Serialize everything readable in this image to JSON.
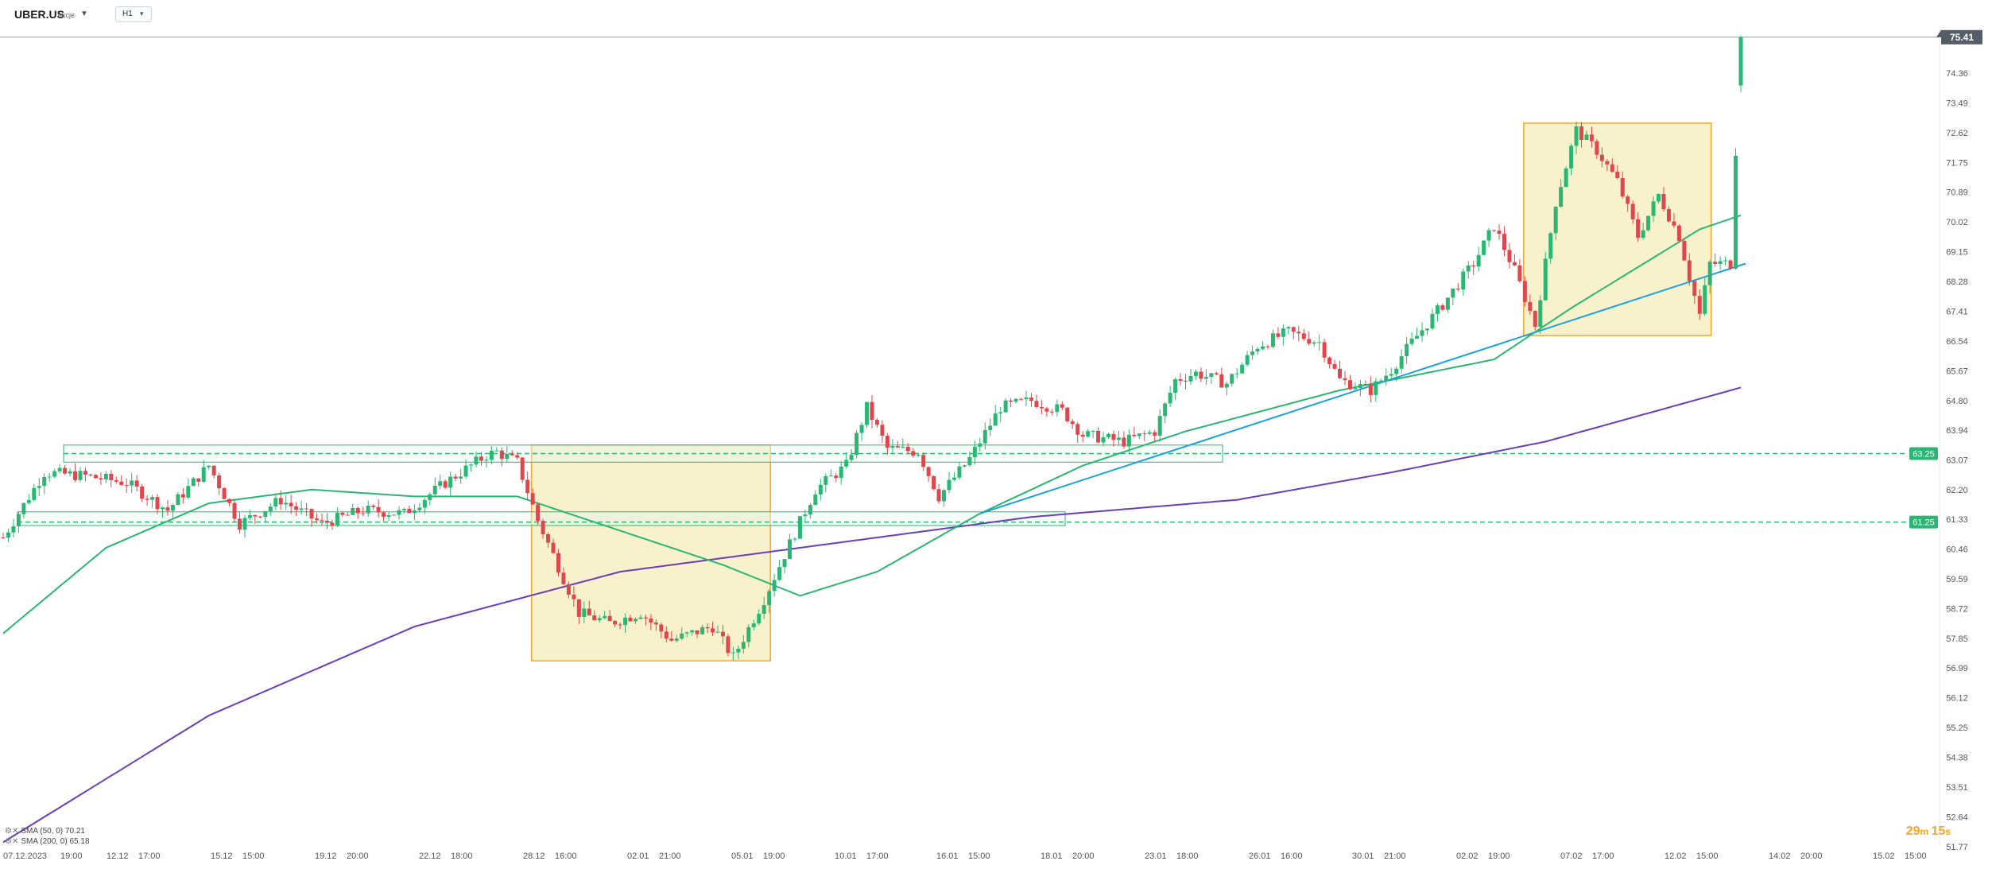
{
  "header": {
    "symbol": "UBER.US",
    "symbol_sub": "Akcje",
    "timeframe": "H1"
  },
  "legend": [
    {
      "label": "SMA (50, 0) 70.21",
      "color": "#2bb673"
    },
    {
      "label": "SMA (200, 0) 65.18",
      "color": "#6a3fb5"
    }
  ],
  "timer": {
    "minutes": "29",
    "seconds": "15"
  },
  "colors": {
    "bull": "#2bb673",
    "bear": "#e0474c",
    "sma50": "#2bb673",
    "sma200": "#6a3fb5",
    "trend": "#1aa3d9",
    "zone_fill": "#f6eec3",
    "zone_stroke": "#f0a830",
    "sr_fill": "#e6f7ef",
    "sr_stroke": "#2bb673",
    "last_price": "#555e66"
  },
  "chart_data": {
    "type": "candlestick",
    "y_axis": {
      "range": [
        51.77,
        75.8
      ],
      "ticks": [
        "74.36",
        "73.49",
        "72.62",
        "71.75",
        "70.89",
        "70.02",
        "69.15",
        "68.28",
        "67.41",
        "66.54",
        "65.67",
        "64.80",
        "63.94",
        "63.07",
        "62.20",
        "61.33",
        "60.46",
        "59.59",
        "58.72",
        "57.85",
        "56.99",
        "56.12",
        "55.25",
        "54.38",
        "53.51",
        "52.64",
        "51.77"
      ]
    },
    "x_axis": {
      "ticks": [
        "07.12.2023",
        "19:00",
        "12.12",
        "17:00",
        "15.12",
        "15:00",
        "19.12",
        "20:00",
        "22.12",
        "18:00",
        "28.12",
        "16:00",
        "02.01",
        "21:00",
        "05.01",
        "19:00",
        "10.01",
        "17:00",
        "16.01",
        "15:00",
        "18.01",
        "20:00",
        "23.01",
        "18:00",
        "26.01",
        "16:00",
        "30.01",
        "21:00",
        "02.02",
        "19:00",
        "07.02",
        "17:00",
        "12.02",
        "15:00",
        "14.02",
        "20:00",
        "15.02",
        "15:00"
      ]
    },
    "last_price": 75.41,
    "price_labels": [
      {
        "value": 63.25,
        "label": "63.25"
      },
      {
        "value": 61.25,
        "label": "61.25"
      }
    ],
    "support_resistance_zones": [
      {
        "from": 63.0,
        "to": 63.5
      },
      {
        "from": 61.15,
        "to": 61.55
      }
    ],
    "consolidation_boxes": [
      {
        "x_from": "28.12",
        "x_to": "05.01",
        "high": 63.5,
        "low": 57.2
      },
      {
        "x_from": "07.02",
        "x_to": "12.02",
        "high": 72.9,
        "low": 66.7
      }
    ],
    "trendline": {
      "from": 61.5,
      "to": 68.8
    },
    "sma50_last": 70.21,
    "sma200_last": 65.18,
    "close_path": [
      [
        0,
        60.8
      ],
      [
        8,
        62.7
      ],
      [
        16,
        62.6
      ],
      [
        24,
        62.4
      ],
      [
        32,
        61.6
      ],
      [
        40,
        62.9
      ],
      [
        46,
        61.2
      ],
      [
        54,
        61.9
      ],
      [
        62,
        61.2
      ],
      [
        70,
        61.6
      ],
      [
        78,
        61.5
      ],
      [
        86,
        62.4
      ],
      [
        94,
        63.2
      ],
      [
        96,
        63.3
      ],
      [
        100,
        63.0
      ],
      [
        104,
        61.3
      ],
      [
        112,
        58.6
      ],
      [
        118,
        58.3
      ],
      [
        124,
        58.6
      ],
      [
        130,
        57.8
      ],
      [
        138,
        58.2
      ],
      [
        142,
        57.3
      ],
      [
        148,
        59.0
      ],
      [
        152,
        60.3
      ],
      [
        158,
        62.2
      ],
      [
        164,
        62.9
      ],
      [
        168,
        64.6
      ],
      [
        172,
        63.4
      ],
      [
        178,
        63.3
      ],
      [
        182,
        62.0
      ],
      [
        188,
        63.1
      ],
      [
        194,
        64.6
      ],
      [
        200,
        64.8
      ],
      [
        206,
        64.5
      ],
      [
        210,
        63.8
      ],
      [
        218,
        63.6
      ],
      [
        224,
        63.9
      ],
      [
        228,
        65.4
      ],
      [
        232,
        65.6
      ],
      [
        238,
        65.3
      ],
      [
        244,
        66.4
      ],
      [
        250,
        66.8
      ],
      [
        256,
        66.5
      ],
      [
        260,
        65.4
      ],
      [
        266,
        65.1
      ],
      [
        270,
        65.7
      ],
      [
        274,
        66.5
      ],
      [
        280,
        67.6
      ],
      [
        286,
        68.8
      ],
      [
        290,
        69.9
      ],
      [
        294,
        68.6
      ],
      [
        298,
        67.0
      ],
      [
        302,
        70.6
      ],
      [
        306,
        72.7
      ],
      [
        310,
        72.1
      ],
      [
        314,
        71.2
      ],
      [
        318,
        69.6
      ],
      [
        322,
        70.8
      ],
      [
        326,
        69.6
      ],
      [
        328,
        68.4
      ],
      [
        330,
        67.3
      ],
      [
        332,
        68.8
      ],
      [
        336,
        68.8
      ],
      [
        338,
        75.41
      ]
    ],
    "sma50_path": [
      [
        0,
        58.0
      ],
      [
        20,
        60.5
      ],
      [
        40,
        61.8
      ],
      [
        60,
        62.2
      ],
      [
        80,
        62.0
      ],
      [
        100,
        62.0
      ],
      [
        120,
        61.0
      ],
      [
        140,
        60.0
      ],
      [
        155,
        59.1
      ],
      [
        170,
        59.8
      ],
      [
        190,
        61.5
      ],
      [
        210,
        62.9
      ],
      [
        230,
        63.9
      ],
      [
        260,
        65.1
      ],
      [
        290,
        66.0
      ],
      [
        305,
        67.5
      ],
      [
        330,
        69.8
      ],
      [
        338,
        70.21
      ]
    ],
    "sma200_path": [
      [
        0,
        51.9
      ],
      [
        40,
        55.6
      ],
      [
        80,
        58.2
      ],
      [
        120,
        59.8
      ],
      [
        160,
        60.6
      ],
      [
        200,
        61.4
      ],
      [
        240,
        61.9
      ],
      [
        270,
        62.7
      ],
      [
        300,
        63.6
      ],
      [
        338,
        65.18
      ]
    ]
  }
}
